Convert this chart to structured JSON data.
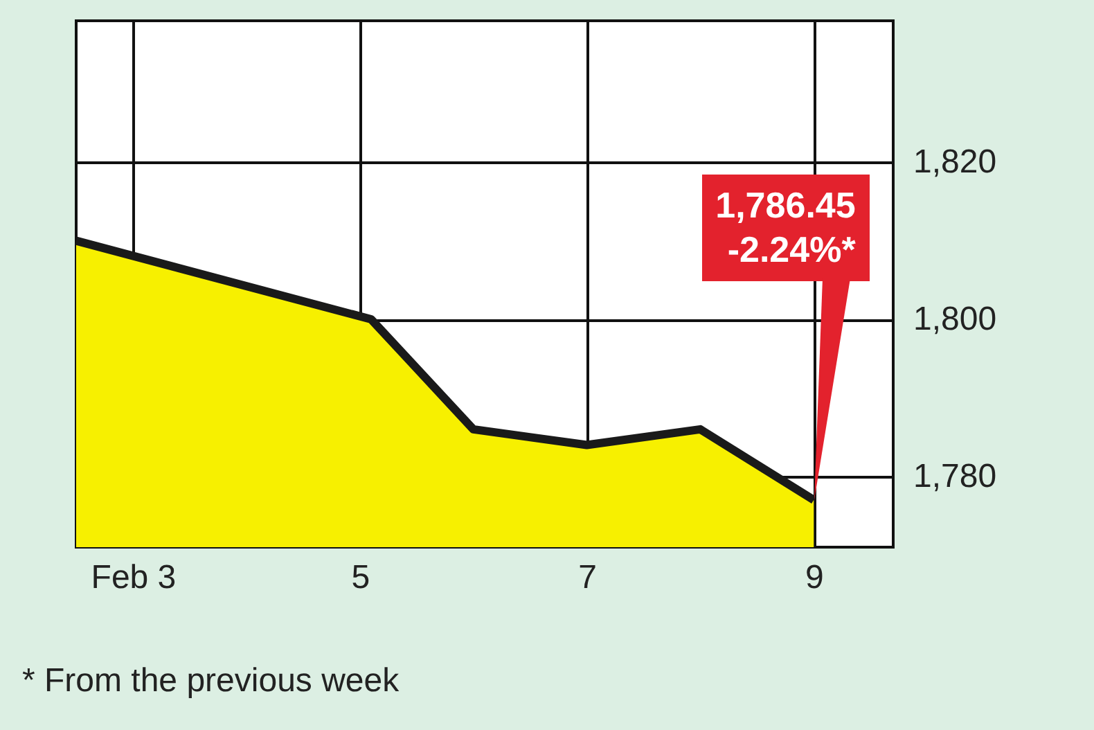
{
  "chart_data": {
    "type": "area",
    "x": [
      2.5,
      5.1,
      6,
      7,
      8,
      9
    ],
    "series": [
      {
        "color": "#f7f000",
        "values": [
          1810,
          1800,
          1786,
          1784,
          1786,
          1777
        ]
      }
    ],
    "xlim": [
      2.5,
      9.7
    ],
    "xticks": [
      {
        "value": 3,
        "label": "Feb 3"
      },
      5,
      7,
      9
    ],
    "ylim": [
      1771,
      1838
    ],
    "yticks": [
      {
        "value": 1780,
        "label": "1,780"
      },
      {
        "value": 1800,
        "label": "1,800"
      },
      {
        "value": 1820,
        "label": "1,820"
      }
    ],
    "grid": true,
    "annotations": [
      {
        "text": "1,786.45\n-2.24%*",
        "x": 9,
        "y": 1777
      },
      "* From the previous week"
    ]
  }
}
